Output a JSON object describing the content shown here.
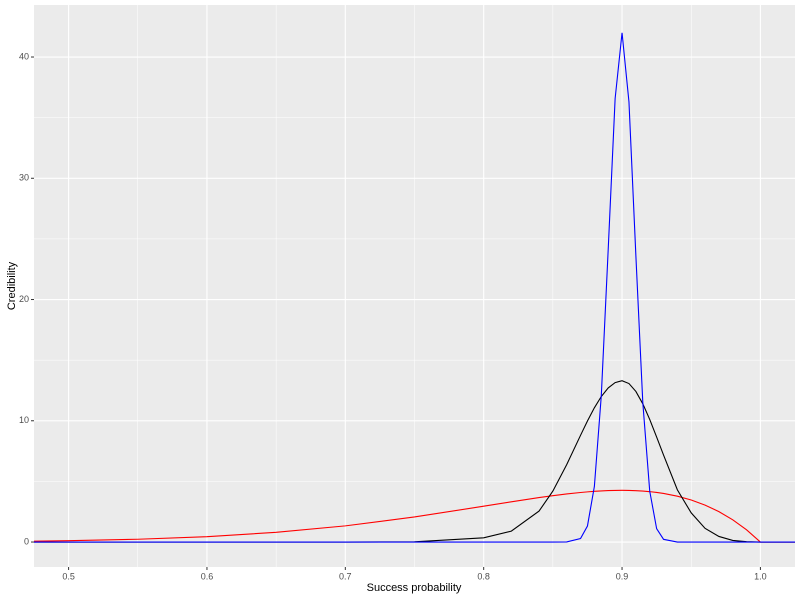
{
  "chart_data": {
    "type": "line",
    "x_label": "Success probability",
    "y_label": "Credibility",
    "x": [
      0.475,
      0.5,
      0.55,
      0.6,
      0.65,
      0.7,
      0.75,
      0.8,
      0.82,
      0.84,
      0.85,
      0.86,
      0.87,
      0.875,
      0.88,
      0.885,
      0.89,
      0.895,
      0.9,
      0.905,
      0.91,
      0.915,
      0.92,
      0.925,
      0.93,
      0.94,
      0.95,
      0.96,
      0.97,
      0.98,
      0.99,
      1.0,
      1.025
    ],
    "series": [
      {
        "color": "#ff0000",
        "values": [
          0.071,
          0.107,
          0.228,
          0.443,
          0.797,
          1.332,
          2.065,
          2.953,
          3.318,
          3.665,
          3.821,
          3.964,
          4.084,
          4.135,
          4.178,
          4.214,
          4.24,
          4.256,
          4.261,
          4.255,
          4.236,
          4.204,
          4.155,
          4.09,
          4.007,
          3.782,
          3.466,
          3.047,
          2.509,
          1.834,
          1.005,
          0,
          0
        ]
      },
      {
        "color": "#000000",
        "values": [
          0,
          0,
          0,
          0,
          0,
          0,
          0.02,
          0.35,
          0.9,
          2.55,
          4.2,
          6.38,
          8.8,
          9.98,
          11.07,
          12.0,
          12.71,
          13.15,
          13.3,
          13.07,
          12.42,
          11.4,
          10.11,
          8.66,
          7.17,
          4.3,
          2.4,
          1.13,
          0.46,
          0.13,
          0.03,
          0,
          0
        ]
      },
      {
        "color": "#0000ff",
        "values": [
          0,
          0,
          0,
          0,
          0,
          0,
          0,
          0,
          0,
          0,
          0,
          0.01,
          0.29,
          1.32,
          4.58,
          12.07,
          24.14,
          36.58,
          42,
          36.3,
          23.6,
          11.5,
          4.2,
          1.1,
          0.22,
          0,
          0,
          0,
          0,
          0,
          0,
          0,
          0
        ]
      }
    ],
    "xlim": [
      0.475,
      1.025
    ],
    "ylim": [
      -2.06,
      44.29
    ],
    "xticks": [
      0.5,
      0.6,
      0.7,
      0.8,
      0.9,
      {
        "value": 1,
        "label": "1.0"
      }
    ],
    "yticks": [
      0,
      10,
      20,
      30,
      40
    ],
    "x_minor_ticks": [
      0.55,
      0.65,
      0.75,
      0.85,
      0.95
    ],
    "y_minor_ticks": [
      5,
      15,
      25,
      35
    ],
    "grid": true,
    "panel_color": "#ebebeb"
  }
}
